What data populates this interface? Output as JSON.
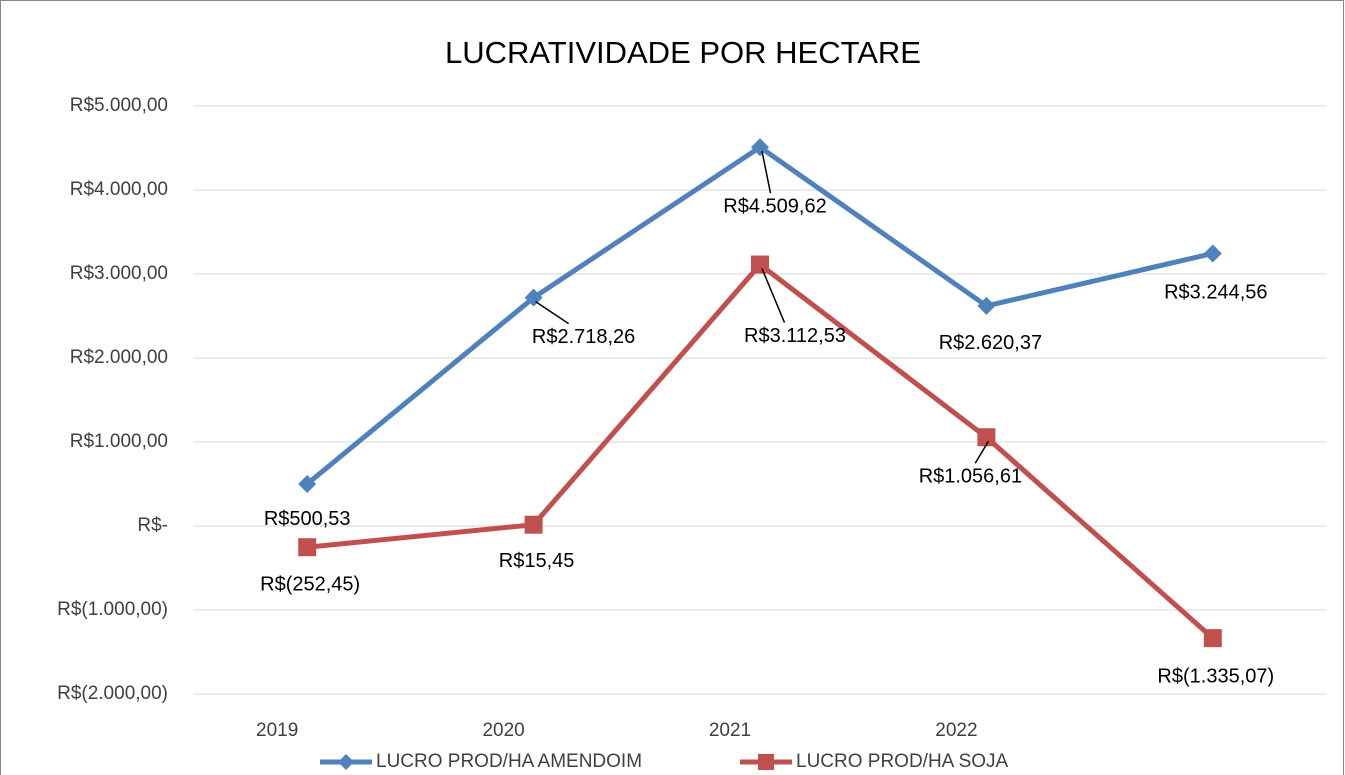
{
  "chart_data": {
    "type": "line",
    "title": "LUCRATIVIDADE POR HECTARE",
    "categories": [
      "2019",
      "2020",
      "2021",
      "2022",
      null
    ],
    "series": [
      {
        "name": "LUCRO PROD/HA AMENDOIM",
        "color": "#4f81bd",
        "marker": "diamond",
        "values": [
          500.53,
          2718.26,
          4509.62,
          2620.37,
          3244.56
        ],
        "value_labels": [
          "R$500,53",
          "R$2.718,26",
          "R$4.509,62",
          "R$2.620,37",
          "R$3.244,56"
        ]
      },
      {
        "name": "LUCRO PROD/HA SOJA",
        "color": "#c0504d",
        "marker": "square",
        "values": [
          -252.45,
          15.45,
          3112.53,
          1056.61,
          -1335.07
        ],
        "value_labels": [
          "R$(252,45)",
          "R$15,45",
          "R$3.112,53",
          "R$1.056,61",
          "R$(1.335,07)"
        ]
      }
    ],
    "ylim": [
      -2000,
      5000
    ],
    "yticks": [
      {
        "value": -2000,
        "label": "R$(2.000,00)"
      },
      {
        "value": -1000,
        "label": "R$(1.000,00)"
      },
      {
        "value": 0,
        "label": "R$-"
      },
      {
        "value": 1000,
        "label": "R$1.000,00"
      },
      {
        "value": 2000,
        "label": "R$2.000,00"
      },
      {
        "value": 3000,
        "label": "R$3.000,00"
      },
      {
        "value": 4000,
        "label": "R$4.000,00"
      },
      {
        "value": 5000,
        "label": "R$5.000,00"
      }
    ],
    "grid": true,
    "legend": "bottom"
  }
}
